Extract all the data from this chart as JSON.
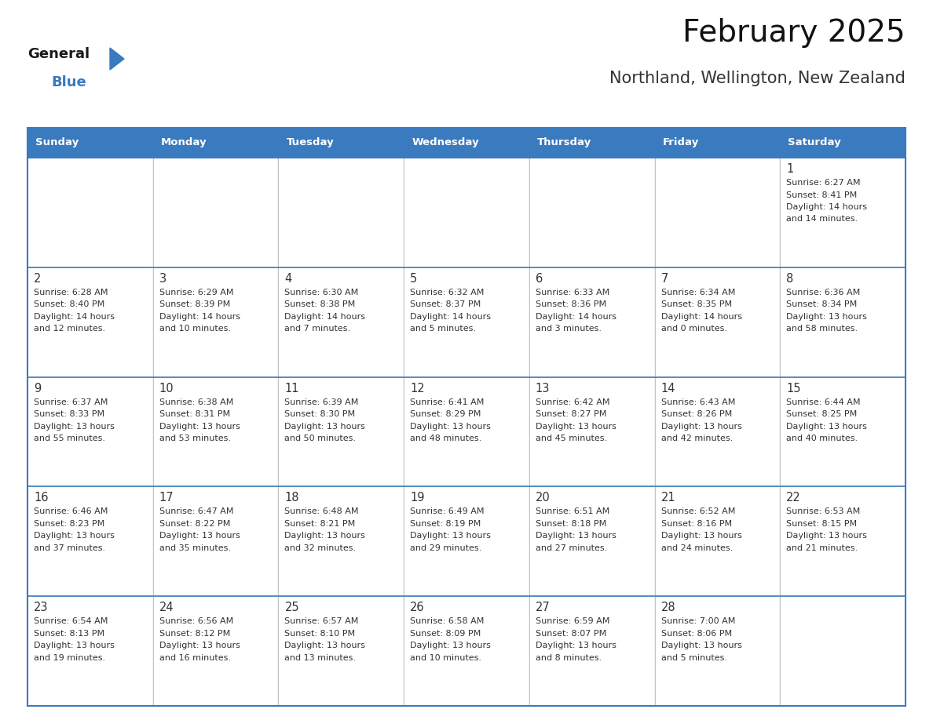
{
  "title": "February 2025",
  "subtitle": "Northland, Wellington, New Zealand",
  "header_bg": "#3a7abf",
  "header_text": "#ffffff",
  "border_color": "#3a7abf",
  "text_color": "#333333",
  "days_of_week": [
    "Sunday",
    "Monday",
    "Tuesday",
    "Wednesday",
    "Thursday",
    "Friday",
    "Saturday"
  ],
  "calendar_data": [
    [
      null,
      null,
      null,
      null,
      null,
      null,
      {
        "day": 1,
        "sunrise": "6:27 AM",
        "sunset": "8:41 PM",
        "daylight_hours": 14,
        "daylight_minutes": 14
      }
    ],
    [
      {
        "day": 2,
        "sunrise": "6:28 AM",
        "sunset": "8:40 PM",
        "daylight_hours": 14,
        "daylight_minutes": 12
      },
      {
        "day": 3,
        "sunrise": "6:29 AM",
        "sunset": "8:39 PM",
        "daylight_hours": 14,
        "daylight_minutes": 10
      },
      {
        "day": 4,
        "sunrise": "6:30 AM",
        "sunset": "8:38 PM",
        "daylight_hours": 14,
        "daylight_minutes": 7
      },
      {
        "day": 5,
        "sunrise": "6:32 AM",
        "sunset": "8:37 PM",
        "daylight_hours": 14,
        "daylight_minutes": 5
      },
      {
        "day": 6,
        "sunrise": "6:33 AM",
        "sunset": "8:36 PM",
        "daylight_hours": 14,
        "daylight_minutes": 3
      },
      {
        "day": 7,
        "sunrise": "6:34 AM",
        "sunset": "8:35 PM",
        "daylight_hours": 14,
        "daylight_minutes": 0
      },
      {
        "day": 8,
        "sunrise": "6:36 AM",
        "sunset": "8:34 PM",
        "daylight_hours": 13,
        "daylight_minutes": 58
      }
    ],
    [
      {
        "day": 9,
        "sunrise": "6:37 AM",
        "sunset": "8:33 PM",
        "daylight_hours": 13,
        "daylight_minutes": 55
      },
      {
        "day": 10,
        "sunrise": "6:38 AM",
        "sunset": "8:31 PM",
        "daylight_hours": 13,
        "daylight_minutes": 53
      },
      {
        "day": 11,
        "sunrise": "6:39 AM",
        "sunset": "8:30 PM",
        "daylight_hours": 13,
        "daylight_minutes": 50
      },
      {
        "day": 12,
        "sunrise": "6:41 AM",
        "sunset": "8:29 PM",
        "daylight_hours": 13,
        "daylight_minutes": 48
      },
      {
        "day": 13,
        "sunrise": "6:42 AM",
        "sunset": "8:27 PM",
        "daylight_hours": 13,
        "daylight_minutes": 45
      },
      {
        "day": 14,
        "sunrise": "6:43 AM",
        "sunset": "8:26 PM",
        "daylight_hours": 13,
        "daylight_minutes": 42
      },
      {
        "day": 15,
        "sunrise": "6:44 AM",
        "sunset": "8:25 PM",
        "daylight_hours": 13,
        "daylight_minutes": 40
      }
    ],
    [
      {
        "day": 16,
        "sunrise": "6:46 AM",
        "sunset": "8:23 PM",
        "daylight_hours": 13,
        "daylight_minutes": 37
      },
      {
        "day": 17,
        "sunrise": "6:47 AM",
        "sunset": "8:22 PM",
        "daylight_hours": 13,
        "daylight_minutes": 35
      },
      {
        "day": 18,
        "sunrise": "6:48 AM",
        "sunset": "8:21 PM",
        "daylight_hours": 13,
        "daylight_minutes": 32
      },
      {
        "day": 19,
        "sunrise": "6:49 AM",
        "sunset": "8:19 PM",
        "daylight_hours": 13,
        "daylight_minutes": 29
      },
      {
        "day": 20,
        "sunrise": "6:51 AM",
        "sunset": "8:18 PM",
        "daylight_hours": 13,
        "daylight_minutes": 27
      },
      {
        "day": 21,
        "sunrise": "6:52 AM",
        "sunset": "8:16 PM",
        "daylight_hours": 13,
        "daylight_minutes": 24
      },
      {
        "day": 22,
        "sunrise": "6:53 AM",
        "sunset": "8:15 PM",
        "daylight_hours": 13,
        "daylight_minutes": 21
      }
    ],
    [
      {
        "day": 23,
        "sunrise": "6:54 AM",
        "sunset": "8:13 PM",
        "daylight_hours": 13,
        "daylight_minutes": 19
      },
      {
        "day": 24,
        "sunrise": "6:56 AM",
        "sunset": "8:12 PM",
        "daylight_hours": 13,
        "daylight_minutes": 16
      },
      {
        "day": 25,
        "sunrise": "6:57 AM",
        "sunset": "8:10 PM",
        "daylight_hours": 13,
        "daylight_minutes": 13
      },
      {
        "day": 26,
        "sunrise": "6:58 AM",
        "sunset": "8:09 PM",
        "daylight_hours": 13,
        "daylight_minutes": 10
      },
      {
        "day": 27,
        "sunrise": "6:59 AM",
        "sunset": "8:07 PM",
        "daylight_hours": 13,
        "daylight_minutes": 8
      },
      {
        "day": 28,
        "sunrise": "7:00 AM",
        "sunset": "8:06 PM",
        "daylight_hours": 13,
        "daylight_minutes": 5
      },
      null
    ]
  ],
  "logo_text_general": "General",
  "logo_text_blue": "Blue",
  "logo_triangle_color": "#3a7abf",
  "fig_width": 11.88,
  "fig_height": 9.18,
  "dpi": 100
}
